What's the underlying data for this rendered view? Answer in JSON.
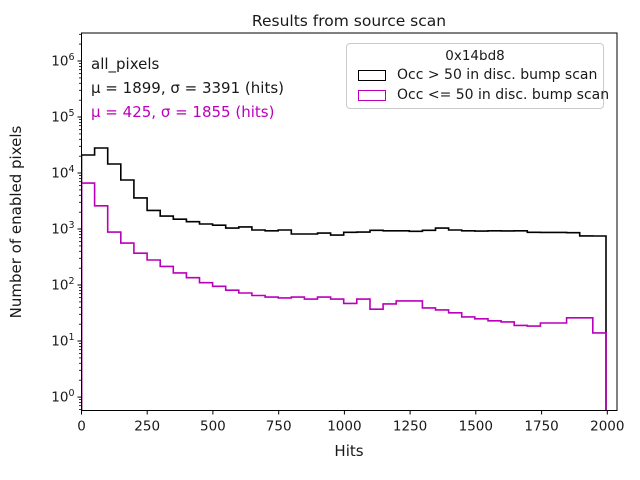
{
  "title": "Results from source scan",
  "chart_data": {
    "type": "step_histogram",
    "title": "Results from source scan",
    "xlabel": "Hits",
    "ylabel": "Number of enabled pixels",
    "x_scale": "linear",
    "y_scale": "log",
    "xlim": [
      0,
      2037
    ],
    "ylim_log10": [
      -0.24,
      6.5
    ],
    "x_ticks": [
      0,
      250,
      500,
      750,
      1000,
      1250,
      1500,
      1750,
      2000
    ],
    "y_tick_exponents": [
      0,
      1,
      2,
      3,
      4,
      5,
      6
    ],
    "bin_start": 0,
    "bin_width": 49.875,
    "n_bins": 40,
    "grid": false,
    "legend_position": "upper right",
    "series": [
      {
        "name": "Occ > 50 in disc. bump scan",
        "color": "#000000",
        "values": [
          21000,
          28000,
          14500,
          7500,
          3600,
          2150,
          1700,
          1500,
          1350,
          1230,
          1170,
          1040,
          1090,
          960,
          930,
          960,
          815,
          815,
          845,
          780,
          875,
          880,
          950,
          930,
          930,
          910,
          950,
          1040,
          960,
          930,
          920,
          930,
          925,
          930,
          875,
          870,
          870,
          860,
          755,
          750
        ]
      },
      {
        "name": "Occ <= 50 in disc. bump scan",
        "color": "#bb00bb",
        "values": [
          6600,
          2600,
          880,
          560,
          370,
          280,
          215,
          165,
          135,
          110,
          95,
          81,
          72,
          65,
          61,
          59,
          61,
          56,
          61,
          56,
          47,
          56,
          37,
          46,
          52,
          52,
          39,
          36,
          32,
          27,
          25,
          23,
          22,
          19,
          18.5,
          21,
          21,
          26,
          26,
          14
        ]
      }
    ]
  },
  "annotations": {
    "dataset_label": "all_pixels",
    "stats": [
      {
        "text": "μ = 1899, σ = 3391 (hits)",
        "color": "#191919"
      },
      {
        "text": "μ = 425, σ = 1855 (hits)",
        "color": "#bb00bb"
      }
    ]
  },
  "legend": {
    "title": "0x14bd8"
  }
}
